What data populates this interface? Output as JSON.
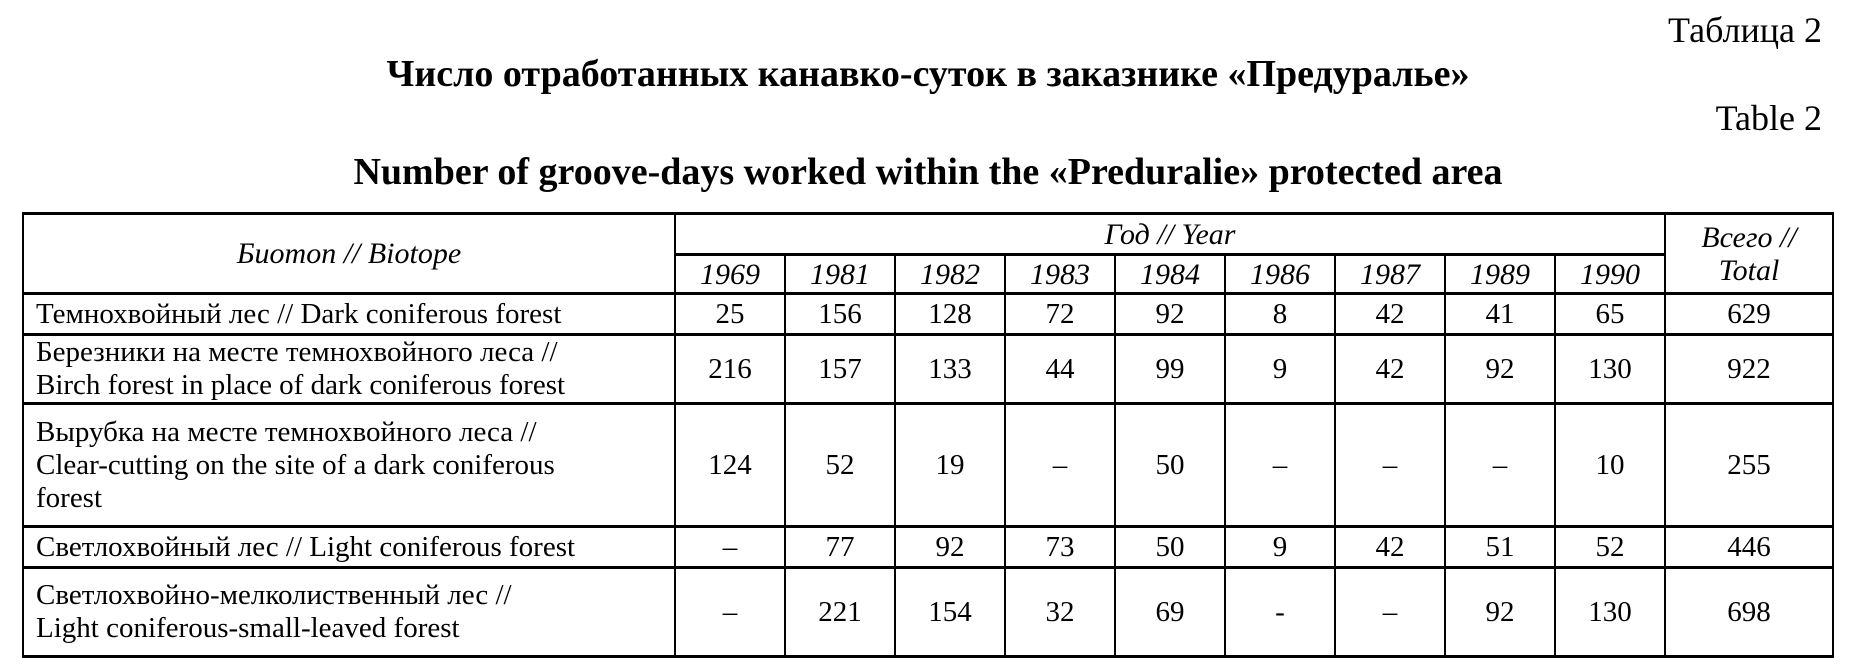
{
  "page": {
    "caption_ru": "Таблица 2",
    "title_ru": "Число отработанных канавко-суток в заказнике «Предуралье»",
    "caption_en": "Table 2",
    "title_en": "Number of groove-days worked within the «Preduralie» protected area"
  },
  "table": {
    "biotope_header": "Биотоп // Biotope",
    "year_header": "Год // Year",
    "total_header": "Всего //\nTotal",
    "years": [
      "1969",
      "1981",
      "1982",
      "1983",
      "1984",
      "1986",
      "1987",
      "1989",
      "1990"
    ],
    "rows": [
      {
        "biotope": "Темнохвойный лес // Dark coniferous forest",
        "values": [
          "25",
          "156",
          "128",
          "72",
          "92",
          "8",
          "42",
          "41",
          "65"
        ],
        "total": "629"
      },
      {
        "biotope": "Березники на месте темнохвойного леса //\nBirch forest in place of dark coniferous forest",
        "values": [
          "216",
          "157",
          "133",
          "44",
          "99",
          "9",
          "42",
          "92",
          "130"
        ],
        "total": "922"
      },
      {
        "biotope": "Вырубка на месте темнохвойного леса //\nClear-cutting on the site of a dark coniferous\nforest",
        "values": [
          "124",
          "52",
          "19",
          "–",
          "50",
          "–",
          "–",
          "–",
          "10"
        ],
        "total": "255"
      },
      {
        "biotope": "Светлохвойный лес // Light coniferous forest",
        "values": [
          "–",
          "77",
          "92",
          "73",
          "50",
          "9",
          "42",
          "51",
          "52"
        ],
        "total": "446"
      },
      {
        "biotope": "Светлохвойно-мелколиственный лес //\nLight coniferous-small-leaved forest",
        "values": [
          "–",
          "221",
          "154",
          "32",
          "69",
          "-",
          "–",
          "92",
          "130"
        ],
        "total": "698"
      }
    ]
  },
  "chart_data": {
    "type": "table",
    "title": "Число отработанных канавко-суток в заказнике «Предуралье» // Number of groove-days worked within the «Preduralie» protected area",
    "columns": [
      "Биотоп // Biotope",
      "1969",
      "1981",
      "1982",
      "1983",
      "1984",
      "1986",
      "1987",
      "1989",
      "1990",
      "Всего // Total"
    ],
    "rows": [
      [
        "Темнохвойный лес // Dark coniferous forest",
        25,
        156,
        128,
        72,
        92,
        8,
        42,
        41,
        65,
        629
      ],
      [
        "Березники на месте темнохвойного леса // Birch forest in place of dark coniferous forest",
        216,
        157,
        133,
        44,
        99,
        9,
        42,
        92,
        130,
        922
      ],
      [
        "Вырубка на месте темнохвойного леса // Clear-cutting on the site of a dark coniferous forest",
        124,
        52,
        19,
        null,
        50,
        null,
        null,
        null,
        10,
        255
      ],
      [
        "Светлохвойный лес // Light coniferous forest",
        null,
        77,
        92,
        73,
        50,
        9,
        42,
        51,
        52,
        446
      ],
      [
        "Светлохвойно-мелколиственный лес // Light coniferous-small-leaved forest",
        null,
        221,
        154,
        32,
        69,
        null,
        null,
        92,
        130,
        698
      ]
    ]
  }
}
